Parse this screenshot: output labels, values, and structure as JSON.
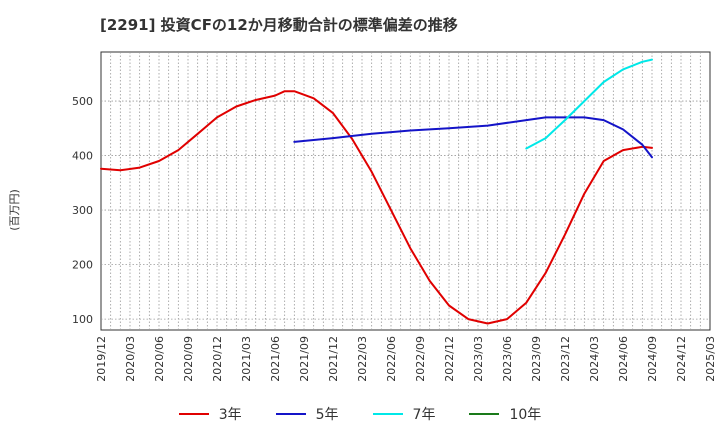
{
  "chart_data": {
    "type": "line",
    "title": "[2291]  投資CFの12か月移動合計の標準偏差の推移",
    "ylabel": "(百万円)",
    "xlabel": "",
    "x_ticks": [
      "2019/12",
      "2020/03",
      "2020/06",
      "2020/09",
      "2020/12",
      "2021/03",
      "2021/06",
      "2021/09",
      "2021/12",
      "2022/03",
      "2022/06",
      "2022/09",
      "2022/12",
      "2023/03",
      "2023/06",
      "2023/09",
      "2023/12",
      "2024/03",
      "2024/06",
      "2024/09",
      "2024/12",
      "2025/03"
    ],
    "y_ticks": [
      100,
      200,
      300,
      400,
      500
    ],
    "ylim": [
      80,
      590
    ],
    "grid": true,
    "legend_position": "bottom",
    "series": [
      {
        "name": "3年",
        "color": "#e00000",
        "points": [
          [
            "2019/12",
            376
          ],
          [
            "2020/02",
            373
          ],
          [
            "2020/04",
            378
          ],
          [
            "2020/06",
            390
          ],
          [
            "2020/08",
            410
          ],
          [
            "2020/10",
            440
          ],
          [
            "2020/12",
            470
          ],
          [
            "2021/02",
            490
          ],
          [
            "2021/04",
            502
          ],
          [
            "2021/06",
            510
          ],
          [
            "2021/07",
            518
          ],
          [
            "2021/08",
            518
          ],
          [
            "2021/10",
            505
          ],
          [
            "2021/12",
            478
          ],
          [
            "2022/02",
            430
          ],
          [
            "2022/04",
            370
          ],
          [
            "2022/06",
            300
          ],
          [
            "2022/08",
            230
          ],
          [
            "2022/10",
            170
          ],
          [
            "2022/12",
            125
          ],
          [
            "2023/02",
            100
          ],
          [
            "2023/04",
            92
          ],
          [
            "2023/06",
            100
          ],
          [
            "2023/08",
            130
          ],
          [
            "2023/10",
            185
          ],
          [
            "2023/12",
            255
          ],
          [
            "2024/02",
            330
          ],
          [
            "2024/04",
            390
          ],
          [
            "2024/06",
            410
          ],
          [
            "2024/08",
            416
          ],
          [
            "2024/09",
            414
          ]
        ]
      },
      {
        "name": "5年",
        "color": "#1414c8",
        "points": [
          [
            "2021/08",
            425
          ],
          [
            "2021/12",
            432
          ],
          [
            "2022/04",
            440
          ],
          [
            "2022/08",
            446
          ],
          [
            "2022/12",
            450
          ],
          [
            "2023/04",
            455
          ],
          [
            "2023/08",
            465
          ],
          [
            "2023/10",
            470
          ],
          [
            "2023/12",
            470
          ],
          [
            "2024/02",
            470
          ],
          [
            "2024/04",
            465
          ],
          [
            "2024/06",
            448
          ],
          [
            "2024/08",
            420
          ],
          [
            "2024/09",
            397
          ]
        ]
      },
      {
        "name": "7年",
        "color": "#00e8e8",
        "points": [
          [
            "2023/08",
            413
          ],
          [
            "2023/10",
            432
          ],
          [
            "2023/12",
            465
          ],
          [
            "2024/02",
            500
          ],
          [
            "2024/04",
            535
          ],
          [
            "2024/06",
            558
          ],
          [
            "2024/08",
            572
          ],
          [
            "2024/09",
            576
          ]
        ]
      },
      {
        "name": "10年",
        "color": "#1a7a1a",
        "points": []
      }
    ]
  }
}
